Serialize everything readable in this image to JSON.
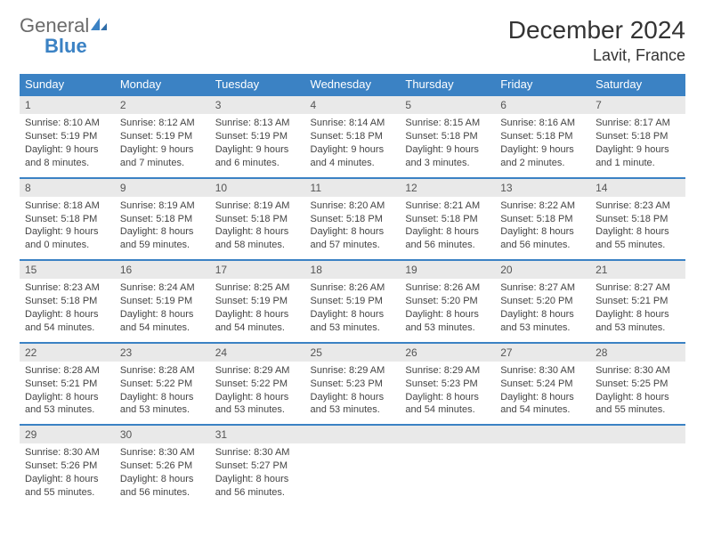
{
  "logo": {
    "text_general": "General",
    "text_blue": "Blue",
    "icon_color": "#3b82c4"
  },
  "title": "December 2024",
  "location": "Lavit, France",
  "colors": {
    "header_bg": "#3b82c4",
    "header_text": "#ffffff",
    "daynum_bg": "#e9e9e9",
    "daynum_border": "#3b82c4",
    "body_text": "#444444",
    "page_bg": "#ffffff"
  },
  "weekdays": [
    "Sunday",
    "Monday",
    "Tuesday",
    "Wednesday",
    "Thursday",
    "Friday",
    "Saturday"
  ],
  "weeks": [
    [
      {
        "num": "1",
        "sunrise": "Sunrise: 8:10 AM",
        "sunset": "Sunset: 5:19 PM",
        "daylight": "Daylight: 9 hours and 8 minutes."
      },
      {
        "num": "2",
        "sunrise": "Sunrise: 8:12 AM",
        "sunset": "Sunset: 5:19 PM",
        "daylight": "Daylight: 9 hours and 7 minutes."
      },
      {
        "num": "3",
        "sunrise": "Sunrise: 8:13 AM",
        "sunset": "Sunset: 5:19 PM",
        "daylight": "Daylight: 9 hours and 6 minutes."
      },
      {
        "num": "4",
        "sunrise": "Sunrise: 8:14 AM",
        "sunset": "Sunset: 5:18 PM",
        "daylight": "Daylight: 9 hours and 4 minutes."
      },
      {
        "num": "5",
        "sunrise": "Sunrise: 8:15 AM",
        "sunset": "Sunset: 5:18 PM",
        "daylight": "Daylight: 9 hours and 3 minutes."
      },
      {
        "num": "6",
        "sunrise": "Sunrise: 8:16 AM",
        "sunset": "Sunset: 5:18 PM",
        "daylight": "Daylight: 9 hours and 2 minutes."
      },
      {
        "num": "7",
        "sunrise": "Sunrise: 8:17 AM",
        "sunset": "Sunset: 5:18 PM",
        "daylight": "Daylight: 9 hours and 1 minute."
      }
    ],
    [
      {
        "num": "8",
        "sunrise": "Sunrise: 8:18 AM",
        "sunset": "Sunset: 5:18 PM",
        "daylight": "Daylight: 9 hours and 0 minutes."
      },
      {
        "num": "9",
        "sunrise": "Sunrise: 8:19 AM",
        "sunset": "Sunset: 5:18 PM",
        "daylight": "Daylight: 8 hours and 59 minutes."
      },
      {
        "num": "10",
        "sunrise": "Sunrise: 8:19 AM",
        "sunset": "Sunset: 5:18 PM",
        "daylight": "Daylight: 8 hours and 58 minutes."
      },
      {
        "num": "11",
        "sunrise": "Sunrise: 8:20 AM",
        "sunset": "Sunset: 5:18 PM",
        "daylight": "Daylight: 8 hours and 57 minutes."
      },
      {
        "num": "12",
        "sunrise": "Sunrise: 8:21 AM",
        "sunset": "Sunset: 5:18 PM",
        "daylight": "Daylight: 8 hours and 56 minutes."
      },
      {
        "num": "13",
        "sunrise": "Sunrise: 8:22 AM",
        "sunset": "Sunset: 5:18 PM",
        "daylight": "Daylight: 8 hours and 56 minutes."
      },
      {
        "num": "14",
        "sunrise": "Sunrise: 8:23 AM",
        "sunset": "Sunset: 5:18 PM",
        "daylight": "Daylight: 8 hours and 55 minutes."
      }
    ],
    [
      {
        "num": "15",
        "sunrise": "Sunrise: 8:23 AM",
        "sunset": "Sunset: 5:18 PM",
        "daylight": "Daylight: 8 hours and 54 minutes."
      },
      {
        "num": "16",
        "sunrise": "Sunrise: 8:24 AM",
        "sunset": "Sunset: 5:19 PM",
        "daylight": "Daylight: 8 hours and 54 minutes."
      },
      {
        "num": "17",
        "sunrise": "Sunrise: 8:25 AM",
        "sunset": "Sunset: 5:19 PM",
        "daylight": "Daylight: 8 hours and 54 minutes."
      },
      {
        "num": "18",
        "sunrise": "Sunrise: 8:26 AM",
        "sunset": "Sunset: 5:19 PM",
        "daylight": "Daylight: 8 hours and 53 minutes."
      },
      {
        "num": "19",
        "sunrise": "Sunrise: 8:26 AM",
        "sunset": "Sunset: 5:20 PM",
        "daylight": "Daylight: 8 hours and 53 minutes."
      },
      {
        "num": "20",
        "sunrise": "Sunrise: 8:27 AM",
        "sunset": "Sunset: 5:20 PM",
        "daylight": "Daylight: 8 hours and 53 minutes."
      },
      {
        "num": "21",
        "sunrise": "Sunrise: 8:27 AM",
        "sunset": "Sunset: 5:21 PM",
        "daylight": "Daylight: 8 hours and 53 minutes."
      }
    ],
    [
      {
        "num": "22",
        "sunrise": "Sunrise: 8:28 AM",
        "sunset": "Sunset: 5:21 PM",
        "daylight": "Daylight: 8 hours and 53 minutes."
      },
      {
        "num": "23",
        "sunrise": "Sunrise: 8:28 AM",
        "sunset": "Sunset: 5:22 PM",
        "daylight": "Daylight: 8 hours and 53 minutes."
      },
      {
        "num": "24",
        "sunrise": "Sunrise: 8:29 AM",
        "sunset": "Sunset: 5:22 PM",
        "daylight": "Daylight: 8 hours and 53 minutes."
      },
      {
        "num": "25",
        "sunrise": "Sunrise: 8:29 AM",
        "sunset": "Sunset: 5:23 PM",
        "daylight": "Daylight: 8 hours and 53 minutes."
      },
      {
        "num": "26",
        "sunrise": "Sunrise: 8:29 AM",
        "sunset": "Sunset: 5:23 PM",
        "daylight": "Daylight: 8 hours and 54 minutes."
      },
      {
        "num": "27",
        "sunrise": "Sunrise: 8:30 AM",
        "sunset": "Sunset: 5:24 PM",
        "daylight": "Daylight: 8 hours and 54 minutes."
      },
      {
        "num": "28",
        "sunrise": "Sunrise: 8:30 AM",
        "sunset": "Sunset: 5:25 PM",
        "daylight": "Daylight: 8 hours and 55 minutes."
      }
    ],
    [
      {
        "num": "29",
        "sunrise": "Sunrise: 8:30 AM",
        "sunset": "Sunset: 5:26 PM",
        "daylight": "Daylight: 8 hours and 55 minutes."
      },
      {
        "num": "30",
        "sunrise": "Sunrise: 8:30 AM",
        "sunset": "Sunset: 5:26 PM",
        "daylight": "Daylight: 8 hours and 56 minutes."
      },
      {
        "num": "31",
        "sunrise": "Sunrise: 8:30 AM",
        "sunset": "Sunset: 5:27 PM",
        "daylight": "Daylight: 8 hours and 56 minutes."
      },
      null,
      null,
      null,
      null
    ]
  ]
}
